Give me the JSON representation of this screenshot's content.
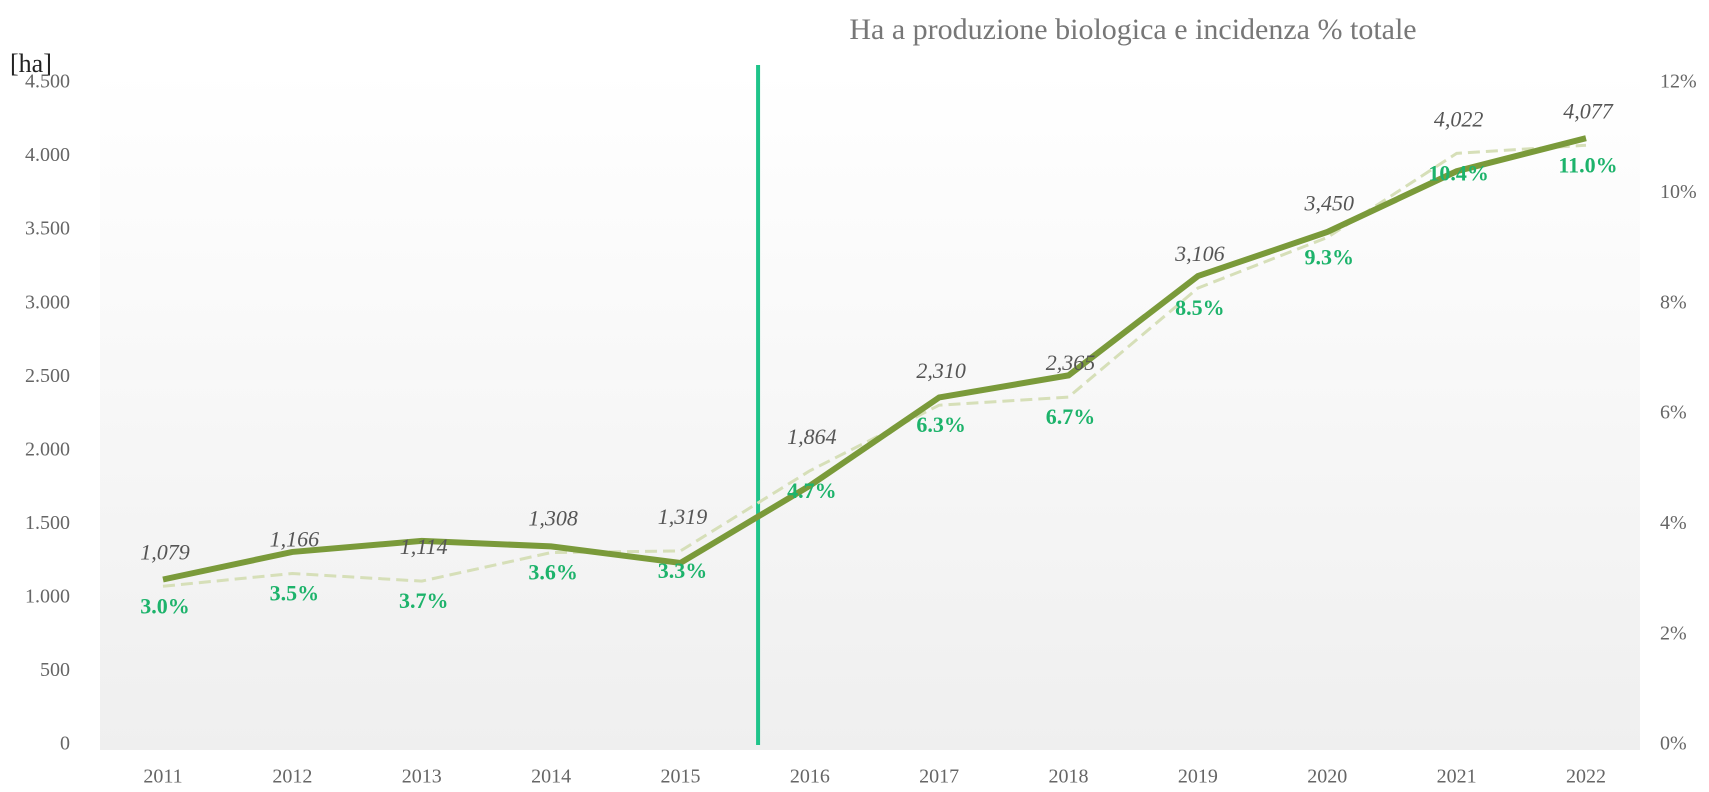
{
  "chart_data": {
    "type": "line",
    "title": "Ha a produzione biologica e incidenza % totale",
    "y_label": "[ha]",
    "categories": [
      "2011",
      "2012",
      "2013",
      "2014",
      "2015",
      "2016",
      "2017",
      "2018",
      "2019",
      "2020",
      "2021",
      "2022"
    ],
    "series": [
      {
        "color": "#d6dfb8",
        "dashed": true,
        "values": [
          1079,
          1166,
          1114,
          1308,
          1319,
          1864,
          2310,
          2365,
          3106,
          3450,
          4022,
          4077
        ],
        "value_labels": [
          "1,079",
          "1,166",
          "1,114",
          "1,308",
          "1,319",
          "1,864",
          "2,310",
          "2,365",
          "3,106",
          "3,450",
          "4,022",
          "4,077"
        ]
      },
      {
        "color": "#7a9a3a",
        "axis": "y2",
        "values": [
          3.0,
          3.5,
          3.7,
          3.6,
          3.3,
          4.7,
          6.3,
          6.7,
          8.5,
          9.3,
          10.4,
          11.0
        ],
        "value_labels": [
          "3.0%",
          "3.5%",
          "3.7%",
          "3.6%",
          "3.3%",
          "4.7%",
          "6.3%",
          "6.7%",
          "8.5%",
          "9.3%",
          "10.4%",
          "11.0%"
        ]
      }
    ],
    "ylim": [
      0,
      4500
    ],
    "yticks": [
      0,
      500,
      {
        "value": 1000,
        "label": "1.000"
      },
      {
        "value": 1500,
        "label": "1.500"
      },
      {
        "value": 2000,
        "label": "2.000"
      },
      {
        "value": 2500,
        "label": "2.500"
      },
      {
        "value": 3000,
        "label": "3.000"
      },
      {
        "value": 3500,
        "label": "3.500"
      },
      {
        "value": 4000,
        "label": "4.000"
      },
      {
        "value": 4500,
        "label": "4.500"
      }
    ],
    "y2lim": [
      0,
      12
    ],
    "y2ticks": [
      {
        "value": 0,
        "label": "0%"
      },
      {
        "value": 2,
        "label": "2%"
      },
      {
        "value": 4,
        "label": "4%"
      },
      {
        "value": 6,
        "label": "6%"
      },
      {
        "value": 8,
        "label": "8%"
      },
      {
        "value": 10,
        "label": "10%"
      },
      {
        "value": 12,
        "label": "12%"
      }
    ]
  }
}
